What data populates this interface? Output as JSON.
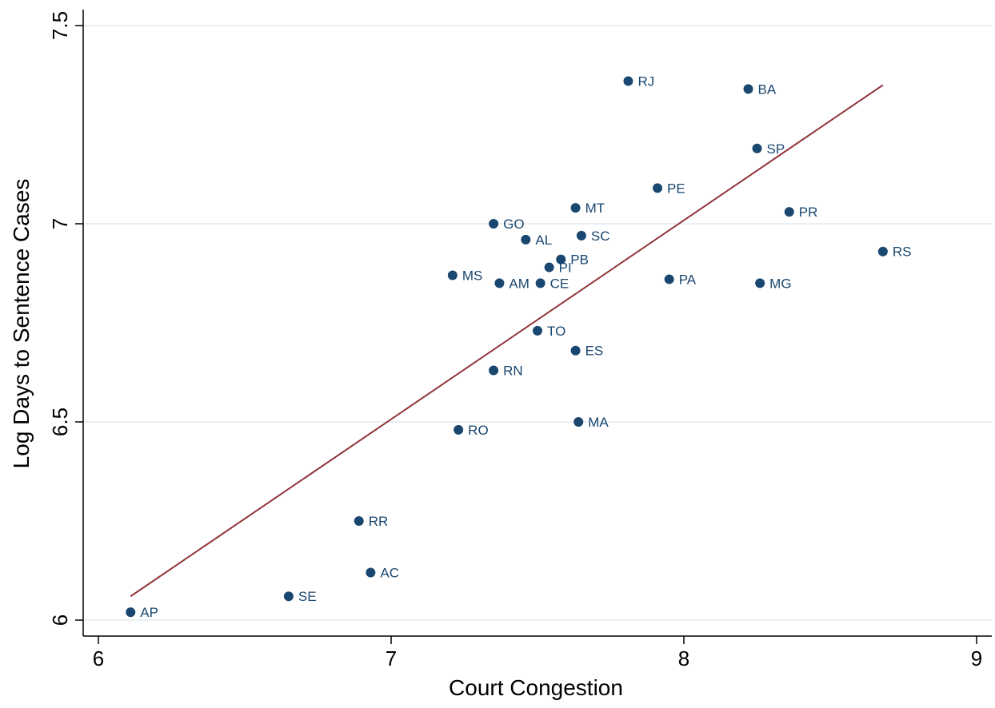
{
  "chart_data": {
    "type": "scatter",
    "title": "",
    "xlabel": "Court Congestion",
    "ylabel": "Log Days to Sentence Cases",
    "xlim": [
      5.94,
      9.05
    ],
    "ylim": [
      5.955,
      7.545
    ],
    "xticks": [
      "6",
      "7",
      "8",
      "9"
    ],
    "yticks": [
      "6",
      "6.5",
      "7",
      "7.5"
    ],
    "grid": true,
    "colors": {
      "points": "#1a476f",
      "fit_line": "#90353b",
      "grid": "#e9eff3"
    },
    "points": [
      {
        "label": "RJ",
        "x": 7.81,
        "y": 7.36
      },
      {
        "label": "BA",
        "x": 8.22,
        "y": 7.34
      },
      {
        "label": "SP",
        "x": 8.25,
        "y": 7.19
      },
      {
        "label": "PE",
        "x": 7.91,
        "y": 7.09
      },
      {
        "label": "MT",
        "x": 7.63,
        "y": 7.04
      },
      {
        "label": "PR",
        "x": 8.36,
        "y": 7.03
      },
      {
        "label": "GO",
        "x": 7.35,
        "y": 7.0
      },
      {
        "label": "AL",
        "x": 7.46,
        "y": 6.96
      },
      {
        "label": "SC",
        "x": 7.65,
        "y": 6.97
      },
      {
        "label": "RS",
        "x": 8.68,
        "y": 6.93
      },
      {
        "label": "PB",
        "x": 7.58,
        "y": 6.91
      },
      {
        "label": "PI",
        "x": 7.54,
        "y": 6.89
      },
      {
        "label": "MS",
        "x": 7.21,
        "y": 6.87
      },
      {
        "label": "PA",
        "x": 7.95,
        "y": 6.86
      },
      {
        "label": "AM",
        "x": 7.37,
        "y": 6.85
      },
      {
        "label": "CE",
        "x": 7.51,
        "y": 6.85
      },
      {
        "label": "MG",
        "x": 8.26,
        "y": 6.85
      },
      {
        "label": "TO",
        "x": 7.5,
        "y": 6.73
      },
      {
        "label": "ES",
        "x": 7.63,
        "y": 6.68
      },
      {
        "label": "RN",
        "x": 7.35,
        "y": 6.63
      },
      {
        "label": "MA",
        "x": 7.64,
        "y": 6.5
      },
      {
        "label": "RO",
        "x": 7.23,
        "y": 6.48
      },
      {
        "label": "RR",
        "x": 6.89,
        "y": 6.25
      },
      {
        "label": "AC",
        "x": 6.93,
        "y": 6.12
      },
      {
        "label": "SE",
        "x": 6.65,
        "y": 6.06
      },
      {
        "label": "AP",
        "x": 6.11,
        "y": 6.02
      }
    ],
    "fit_line": {
      "x": [
        6.11,
        8.68
      ],
      "y": [
        6.06,
        7.35
      ]
    }
  }
}
